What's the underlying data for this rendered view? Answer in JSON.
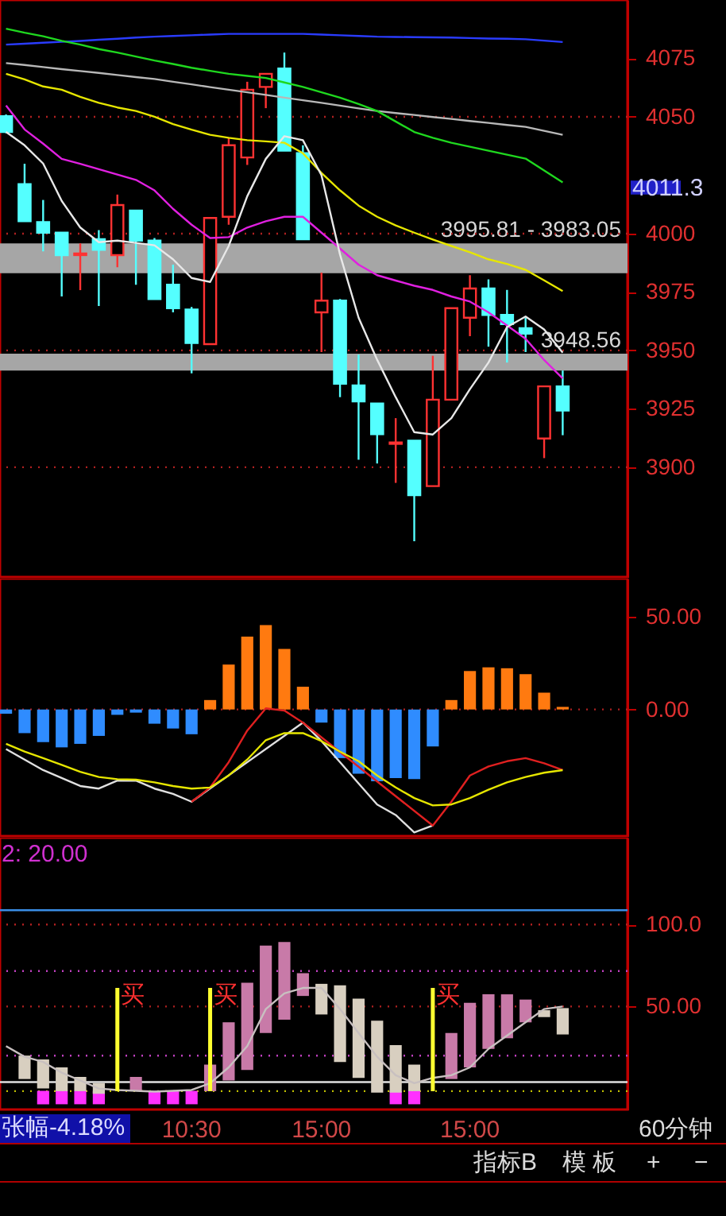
{
  "chart_data": [
    {
      "type": "candlestick",
      "categories": [
        null,
        null,
        null,
        null,
        null,
        null,
        null,
        null,
        null,
        null,
        null,
        null,
        null,
        null,
        null,
        null,
        null,
        null,
        null,
        null,
        null,
        null,
        null,
        null,
        null,
        null,
        null,
        null,
        null,
        null,
        null
      ],
      "ohlc": [
        [
          4050.3,
          4051,
          4043,
          4043.5
        ],
        [
          4021.2,
          4029.9,
          4005.3,
          4005.3
        ],
        [
          4004.9,
          4014.4,
          3992.4,
          4000.4
        ],
        [
          4000.4,
          4000.4,
          3973.1,
          3990.8
        ],
        [
          3990.8,
          3995.8,
          3975.8,
          3991.5
        ],
        [
          3997.6,
          4001.5,
          3969,
          3993.1
        ],
        [
          3990.8,
          4016.7,
          3985.6,
          4012.2
        ],
        [
          4009.9,
          4009.9,
          3978.1,
          3997
        ],
        [
          3997,
          3998.1,
          3972,
          3972
        ],
        [
          3978.1,
          3986.7,
          3966.3,
          3968.1
        ],
        [
          3967.5,
          3968.6,
          3940.2,
          3953.2
        ],
        [
          3952.7,
          4006.7,
          3952.7,
          4006.7
        ],
        [
          4007.2,
          4041.2,
          4003.8,
          4037.8
        ],
        [
          4032.6,
          4065,
          4029.4,
          4061.6
        ],
        [
          4062.8,
          4068.4,
          4053.7,
          4068.4
        ],
        [
          4070.7,
          4077.5,
          4035.5,
          4035.5
        ],
        [
          4034.4,
          4037.8,
          3997.6,
          3997.6
        ],
        [
          3966.3,
          3983.3,
          3949.3,
          3971.3
        ],
        [
          3971.3,
          3972,
          3930,
          3935.7
        ],
        [
          3935,
          3948.2,
          3903.2,
          3928.2
        ],
        [
          3927.3,
          3927.3,
          3901.6,
          3914.1
        ],
        [
          3910,
          3921,
          3893.3,
          3910.6
        ],
        [
          3911.4,
          3911.4,
          3868.3,
          3888
        ],
        [
          3891.9,
          3947.7,
          3891.9,
          3928.9
        ],
        [
          3928.9,
          3968.1,
          3928.9,
          3968.1
        ],
        [
          3964,
          3982.2,
          3956.1,
          3976.5
        ],
        [
          3976.5,
          3980.4,
          3951.6,
          3965.2
        ],
        [
          3965.2,
          3975.9,
          3944.8,
          3961.3
        ],
        [
          3959.5,
          3964.1,
          3949.3,
          3957.2
        ],
        [
          3912.3,
          3934.6,
          3903.9,
          3934.6
        ],
        [
          3934.6,
          3941.4,
          3913.7,
          3924.3
        ]
      ],
      "colors": [
        "#54ffff",
        "#54ffff",
        "#54ffff",
        "#54ffff",
        "#ff3232",
        "#54ffff",
        "#ff3232",
        "#54ffff",
        "#54ffff",
        "#54ffff",
        "#54ffff",
        "#ff3232",
        "#ff3232",
        "#ff3232",
        "#ff3232",
        "#54ffff",
        "#54ffff",
        "#ff3232",
        "#54ffff",
        "#54ffff",
        "#54ffff",
        "#ff3232",
        "#54ffff",
        "#ff3232",
        "#ff3232",
        "#ff3232",
        "#54ffff",
        "#54ffff",
        "#54ffff",
        "#ff3232",
        "#54ffff"
      ],
      "series": [
        {
          "type": "line",
          "color": "#2a3cff",
          "values": [
            4080.9,
            4081.3,
            4081.7,
            4082.1,
            4082.5,
            4083,
            4083.4,
            4083.9,
            4084.3,
            4084.6,
            4084.9,
            4085.2,
            4085.5,
            4085.5,
            4085.5,
            4085.5,
            4085.5,
            4085.2,
            4084.9,
            4084.6,
            4084.3,
            4084.2,
            4084.1,
            4084,
            4083.9,
            4083.7,
            4083.5,
            4083.4,
            4083.2,
            4082.6,
            4082
          ]
        },
        {
          "type": "line",
          "color": "#b8b8b8",
          "values": [
            4073,
            4072.2,
            4071.3,
            4070.4,
            4069.6,
            4068.8,
            4067.9,
            4067,
            4066.2,
            4065,
            4063.9,
            4062.7,
            4061.6,
            4060.5,
            4059.4,
            4058.2,
            4057.1,
            4056,
            4054.8,
            4053.6,
            4052.5,
            4051.6,
            4050.8,
            4049.9,
            4049.1,
            4048.2,
            4047.4,
            4046.5,
            4045.7,
            4044,
            4042.3
          ]
        },
        {
          "type": "line",
          "color": "#1fd81f",
          "values": [
            4087.7,
            4086,
            4084.5,
            4082.5,
            4080.9,
            4079,
            4077.5,
            4075.8,
            4074.1,
            4072.6,
            4071,
            4069.7,
            4068.4,
            4067.5,
            4066.6,
            4064.7,
            4062.8,
            4060.5,
            4058.2,
            4055.5,
            4052.5,
            4048,
            4043.5,
            4041,
            4038.9,
            4037.2,
            4035.5,
            4033.8,
            4032.1,
            4027,
            4021.9
          ]
        },
        {
          "type": "line",
          "color": "#e6e600",
          "values": [
            4068.4,
            4066,
            4063,
            4061.6,
            4058.5,
            4056,
            4054,
            4052.5,
            4050,
            4046.9,
            4044.5,
            4042.3,
            4041,
            4040,
            4039.5,
            4038.9,
            4034.4,
            4026,
            4018.5,
            4012,
            4007.2,
            4003.5,
            4000.4,
            3997.5,
            3994.7,
            3992,
            3989,
            3987,
            3984.5,
            3980,
            3975.4
          ]
        },
        {
          "type": "line",
          "color": "#e020e0",
          "values": [
            4054.8,
            4044.6,
            4038.5,
            4032,
            4029.9,
            4027.6,
            4025.3,
            4023,
            4018.5,
            4010.6,
            4003.8,
            3998.1,
            3998.5,
            4002.6,
            4005.3,
            4007.2,
            4007.2,
            4000.4,
            3993.6,
            3986.7,
            3982.2,
            3979.9,
            3977.7,
            3975.9,
            3973.1,
            3970.9,
            3966.3,
            3960.7,
            3955,
            3945.9,
            3938
          ]
        },
        {
          "type": "line",
          "color": "#e8e8e8",
          "values": [
            4043.5,
            4037.8,
            4030,
            4014,
            4002.6,
            3996.3,
            3997,
            3996,
            3995,
            3989,
            3981,
            3979.3,
            3994.7,
            4016,
            4032,
            4041.7,
            4040,
            4025,
            3991,
            3964,
            3946,
            3930,
            3915,
            3914,
            3921,
            3933.4,
            3944.8,
            3960,
            3964.5,
            3959,
            3949
          ]
        }
      ],
      "ylim": [
        3853,
        4100
      ],
      "yticks": [
        3900,
        3925,
        3950,
        3975,
        4000,
        4050,
        4075
      ],
      "tick_labels": "y",
      "bands": [
        {
          "axis": "y",
          "from": 3983.05,
          "to": 3995.81,
          "label": "3995.81 - 3983.05",
          "color": "#a6a6a6"
        },
        {
          "axis": "y",
          "from": 3941.4,
          "to": 3948.56,
          "label": "3948.56",
          "color": "#a6a6a6"
        }
      ],
      "ref_lines": [
        {
          "axis": "y",
          "value": 3900,
          "color": "#b02020",
          "line_style": "dotted"
        },
        {
          "axis": "y",
          "value": 3950,
          "color": "#b02020",
          "line_style": "dotted"
        },
        {
          "axis": "y",
          "value": 4000,
          "color": "#b02020",
          "line_style": "dotted"
        },
        {
          "axis": "y",
          "value": 4050,
          "color": "#b02020",
          "line_style": "dotted"
        }
      ],
      "annotations": [
        "4011.3"
      ]
    },
    {
      "type": "bar",
      "categories": [
        null,
        null,
        null,
        null,
        null,
        null,
        null,
        null,
        null,
        null,
        null,
        null,
        null,
        null,
        null,
        null,
        null,
        null,
        null,
        null,
        null,
        null,
        null,
        null,
        null,
        null,
        null,
        null,
        null,
        null,
        null
      ],
      "series": [
        {
          "type": "bar",
          "colors": [
            "#2f8cff",
            "#2f8cff",
            "#2f8cff",
            "#2f8cff",
            "#2f8cff",
            "#2f8cff",
            "#2f8cff",
            "#2f8cff",
            "#2f8cff",
            "#2f8cff",
            "#2f8cff",
            "#ff7a10",
            "#ff7a10",
            "#ff7a10",
            "#ff7a10",
            "#ff7a10",
            "#ff7a10",
            "#2f8cff",
            "#2f8cff",
            "#2f8cff",
            "#2f8cff",
            "#2f8cff",
            "#2f8cff",
            "#2f8cff",
            "#ff7a10",
            "#ff7a10",
            "#ff7a10",
            "#ff7a10",
            "#ff7a10",
            "#ff7a10",
            "#ff7a10"
          ],
          "values": [
            -2.3,
            -12.8,
            -17.7,
            -20.5,
            -18.6,
            -14.3,
            -2.9,
            -1.7,
            -7.7,
            -10.3,
            -13.4,
            5.1,
            24.3,
            39.4,
            45.7,
            32.8,
            12.3,
            -7.1,
            -26.3,
            -34.8,
            -38.8,
            -37.1,
            -37.7,
            -20,
            5.1,
            20.8,
            22.8,
            22.3,
            19.1,
            9.1,
            1.4
          ]
        },
        {
          "type": "line",
          "color": "#e0e0e0",
          "values": [
            -21.4,
            -27.1,
            -32.8,
            -37.1,
            -41.4,
            -42.8,
            -38.5,
            -38.5,
            -42.8,
            -45.7,
            -49.9,
            null,
            null,
            null,
            null,
            null,
            -7.1,
            -17.1,
            -28.5,
            -40,
            -51.4,
            -57.1,
            -66.5,
            -62.8,
            null,
            null,
            null,
            null,
            null,
            null,
            null
          ]
        },
        {
          "type": "line",
          "color": "#e02020",
          "values": [
            null,
            null,
            null,
            null,
            null,
            null,
            null,
            null,
            null,
            null,
            -49.9,
            -42.2,
            -28.5,
            -11.4,
            0.6,
            -0.6,
            -7.1,
            null,
            null,
            null,
            null,
            null,
            null,
            -62.8,
            -49.9,
            -35.7,
            -30.8,
            -28,
            -26.3,
            -29.1,
            -32.8
          ]
        },
        {
          "type": "line",
          "color": "#e6e600",
          "values": [
            -18.6,
            -22.8,
            -26.3,
            -30,
            -33.7,
            -36.5,
            -37.7,
            -38,
            -39.4,
            -41.4,
            -42.8,
            -42.2,
            -35.7,
            -27.1,
            -16.6,
            -12.8,
            -12.8,
            -17.1,
            -22.8,
            -28,
            -35.7,
            -42.2,
            -47.9,
            -51.9,
            -51.4,
            -47.9,
            -43.4,
            -39.4,
            -36.5,
            -34.2,
            -32.8
          ]
        }
      ],
      "ylim": [
        -68.5,
        70.8
      ],
      "yticks": [
        {
          "value": 0,
          "label": "0.00"
        },
        {
          "value": 50,
          "label": "50.00"
        }
      ],
      "tick_labels": "y",
      "ref_lines": [
        {
          "axis": "y",
          "value": 0,
          "color": "#b02020",
          "line_style": "dotted"
        }
      ]
    },
    {
      "type": "bar",
      "categories": [
        null,
        null,
        null,
        null,
        null,
        null,
        null,
        null,
        null,
        null,
        "10:30",
        null,
        null,
        null,
        null,
        null,
        null,
        "15:00",
        null,
        null,
        null,
        null,
        null,
        null,
        null,
        "15:00",
        null,
        null,
        null,
        null,
        null
      ],
      "series": [
        {
          "type": "bar",
          "color": "#ff30ff",
          "base": [
            null,
            null,
            -9.7,
            -9.7,
            -9.7,
            -9.7,
            null,
            null,
            -9.7,
            -9.7,
            -9.7,
            null,
            null,
            null,
            null,
            null,
            null,
            null,
            null,
            null,
            null,
            -9.7,
            -9.7,
            null,
            null,
            null,
            null,
            null,
            null,
            null,
            null
          ],
          "values": [
            null,
            null,
            8.2,
            8.2,
            8.2,
            8.2,
            null,
            null,
            8.2,
            8.2,
            8.2,
            null,
            null,
            null,
            null,
            null,
            null,
            null,
            null,
            null,
            null,
            8.2,
            8.2,
            null,
            null,
            null,
            null,
            null,
            null,
            null,
            null
          ]
        },
        {
          "type": "bar",
          "color": "#d8cfc0",
          "base": [
            null,
            5.7,
            -0.1,
            -1.7,
            -1.7,
            -3.3,
            null,
            null,
            null,
            null,
            null,
            null,
            null,
            null,
            null,
            null,
            null,
            45.1,
            16.1,
            6.4,
            -2.6,
            -2.6,
            -1.7,
            null,
            null,
            null,
            null,
            null,
            null,
            43.5,
            32.9
          ],
          "values": [
            null,
            14.3,
            17.8,
            14.5,
            8.7,
            6.5,
            null,
            null,
            null,
            null,
            null,
            null,
            null,
            null,
            null,
            null,
            null,
            18.7,
            46.8,
            48.4,
            43.9,
            29,
            16.2,
            null,
            null,
            null,
            null,
            null,
            null,
            4.2,
            16.1
          ]
        },
        {
          "type": "bar",
          "color": "#c87aa8",
          "base": [
            null,
            null,
            null,
            null,
            null,
            null,
            null,
            -1.7,
            null,
            null,
            null,
            -1.7,
            4.8,
            11.2,
            33.8,
            41.9,
            56.4,
            null,
            null,
            null,
            null,
            null,
            null,
            null,
            5.7,
            12.8,
            24.1,
            30.6,
            40.3,
            null,
            null
          ],
          "values": [
            null,
            null,
            null,
            null,
            null,
            null,
            null,
            8.7,
            null,
            null,
            null,
            16.2,
            35.5,
            53.3,
            53.3,
            47.4,
            13.9,
            null,
            null,
            null,
            null,
            null,
            null,
            null,
            28.1,
            39.4,
            33.3,
            26.8,
            13.9,
            null,
            null
          ]
        },
        {
          "type": "line",
          "color": "#c8c0c0",
          "values": [
            25.8,
            19.3,
            16.1,
            9.6,
            4.8,
            -0.1,
            -1,
            -1.5,
            -2,
            -1.5,
            -1,
            3.2,
            12.8,
            25.8,
            48.4,
            58,
            61.3,
            61.3,
            48.4,
            33.8,
            19.3,
            8,
            3.2,
            6.4,
            8,
            12.8,
            24.1,
            32.2,
            40.3,
            48.4,
            50
          ]
        },
        {
          "type": "bar",
          "color": "#ffff30",
          "base": [
            null,
            null,
            null,
            null,
            null,
            null,
            -1.7,
            null,
            null,
            null,
            null,
            -1.7,
            null,
            null,
            null,
            null,
            null,
            null,
            null,
            null,
            null,
            null,
            null,
            -1.7,
            null,
            null,
            null,
            null,
            null,
            null,
            null
          ],
          "values": [
            null,
            null,
            null,
            null,
            null,
            null,
            63,
            null,
            null,
            null,
            null,
            63,
            null,
            null,
            null,
            null,
            null,
            null,
            null,
            null,
            null,
            null,
            null,
            63,
            null,
            null,
            null,
            null,
            null,
            null,
            null
          ],
          "value_labels": [
            null,
            null,
            null,
            null,
            null,
            null,
            "买",
            null,
            null,
            null,
            null,
            "买",
            null,
            null,
            null,
            null,
            null,
            null,
            null,
            null,
            null,
            null,
            null,
            "买",
            null,
            null,
            null,
            null,
            null,
            null,
            null
          ]
        }
      ],
      "ylim": [
        -12.9,
        153
      ],
      "yticks": [
        {
          "value": 50,
          "label": "50.00"
        },
        {
          "value": 100,
          "label": "100.0"
        }
      ],
      "ref_lines": [
        {
          "axis": "y",
          "value": 108.7,
          "color": "#3a8ee6",
          "line_style": "solid"
        },
        {
          "axis": "y",
          "value": 3.8,
          "color": "#e0e0e0",
          "line_style": "solid"
        },
        {
          "axis": "y",
          "value": 100,
          "color": "#b02020",
          "line_style": "dotted"
        },
        {
          "axis": "y",
          "value": 50,
          "color": "#b02020",
          "line_style": "dotted"
        },
        {
          "axis": "y",
          "value": 71.6,
          "color": "#c040c0",
          "line_style": "dotted"
        },
        {
          "axis": "y",
          "value": 20,
          "color": "#c040c0",
          "line_style": "dotted"
        },
        {
          "axis": "y",
          "value": -1.7,
          "color": "#c0c000",
          "line_style": "dotted"
        }
      ],
      "annotations": [
        "2: 20.00",
        "张幅-4.18%",
        "60分钟",
        "指标B",
        "模 板",
        "+",
        "−"
      ]
    }
  ]
}
